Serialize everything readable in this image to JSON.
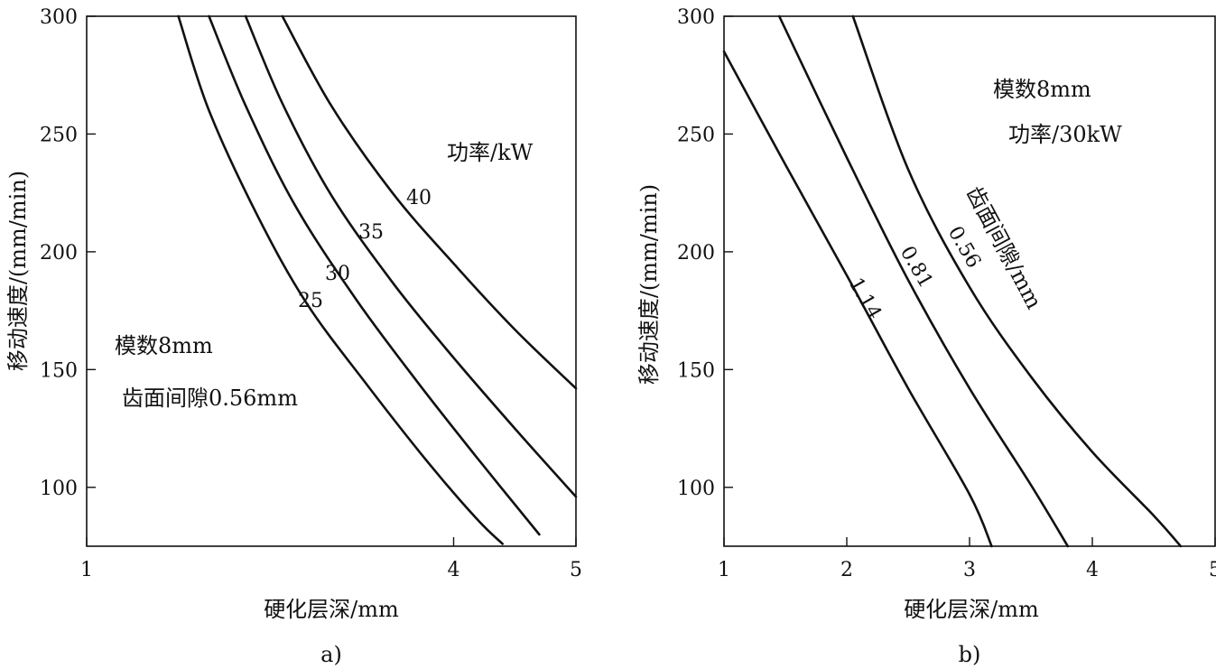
{
  "chart_data": [
    {
      "type": "line",
      "panel_label": "a)",
      "xlabel": "硬化层深/mm",
      "ylabel": "移动速度/(mm/min)",
      "xlim": [
        1,
        5
      ],
      "ylim": [
        75,
        300
      ],
      "x_ticks": [
        1,
        4,
        5
      ],
      "y_ticks": [
        100,
        150,
        200,
        250,
        300
      ],
      "grid": false,
      "annotations": [
        "功率/kW",
        "模数8mm",
        "齿面间隙0.56mm"
      ],
      "series": [
        {
          "name": "25",
          "x": [
            1.75,
            2.0,
            2.4,
            2.8,
            3.3,
            3.8,
            4.2,
            4.4
          ],
          "y": [
            300,
            260,
            215,
            178,
            143,
            110,
            86,
            76
          ]
        },
        {
          "name": "30",
          "x": [
            2.0,
            2.3,
            2.7,
            3.2,
            3.7,
            4.2,
            4.7
          ],
          "y": [
            300,
            262,
            220,
            180,
            145,
            112,
            80
          ]
        },
        {
          "name": "35",
          "x": [
            2.3,
            2.6,
            3.0,
            3.5,
            4.0,
            4.5,
            5.0
          ],
          "y": [
            300,
            263,
            224,
            187,
            155,
            125,
            96
          ]
        },
        {
          "name": "40",
          "x": [
            2.6,
            3.0,
            3.5,
            4.0,
            4.5,
            5.0
          ],
          "y": [
            300,
            262,
            225,
            195,
            167,
            142
          ]
        }
      ]
    },
    {
      "type": "line",
      "panel_label": "b)",
      "xlabel": "硬化层深/mm",
      "ylabel": "移动速度/(mm/min)",
      "xlim": [
        1,
        5
      ],
      "ylim": [
        75,
        300
      ],
      "x_ticks": [
        1,
        2,
        3,
        4,
        5
      ],
      "y_ticks": [
        100,
        150,
        200,
        250,
        300
      ],
      "grid": false,
      "annotations": [
        "模数8mm",
        "功率/30kW",
        "齿面间隙/mm"
      ],
      "series": [
        {
          "name": "1.14",
          "x": [
            1.0,
            1.5,
            2.0,
            2.5,
            3.0,
            3.18
          ],
          "y": [
            285,
            237,
            190,
            142,
            97,
            75
          ]
        },
        {
          "name": "0.81",
          "x": [
            1.45,
            2.0,
            2.5,
            3.0,
            3.5,
            3.8
          ],
          "y": [
            300,
            240,
            188,
            142,
            101,
            75
          ]
        },
        {
          "name": "0.56",
          "x": [
            2.05,
            2.5,
            3.0,
            3.5,
            4.0,
            4.5,
            4.72
          ],
          "y": [
            300,
            235,
            185,
            147,
            115,
            88,
            75
          ]
        }
      ]
    }
  ]
}
